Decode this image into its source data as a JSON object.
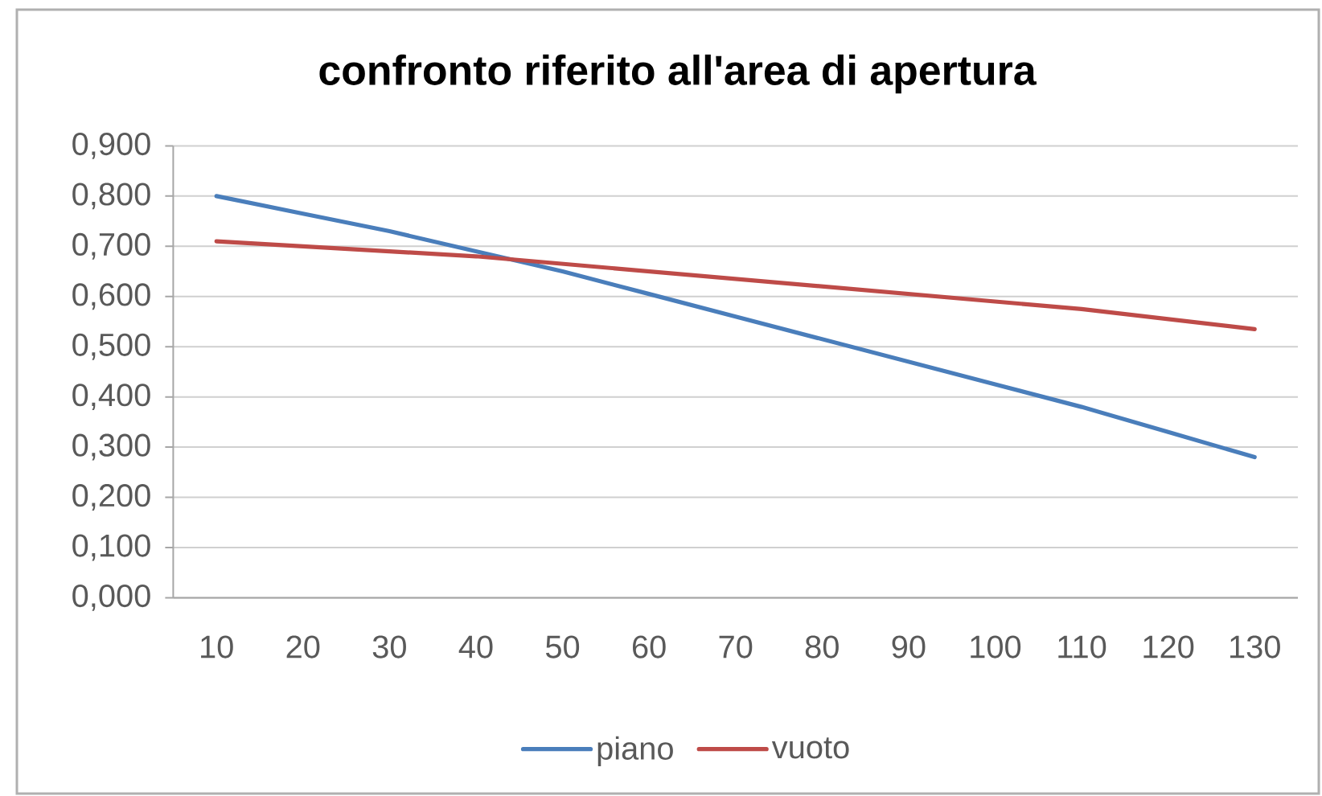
{
  "chart_data": {
    "type": "line",
    "title": "confronto riferito all'area di apertura",
    "categories": [
      "10",
      "20",
      "30",
      "40",
      "50",
      "60",
      "70",
      "80",
      "90",
      "100",
      "110",
      "120",
      "130"
    ],
    "series": [
      {
        "name": "piano",
        "color": "#4a7ebb",
        "values": [
          0.8,
          0.765,
          0.73,
          0.69,
          0.65,
          0.605,
          0.56,
          0.515,
          0.47,
          0.425,
          0.38,
          0.33,
          0.28
        ]
      },
      {
        "name": "vuoto",
        "color": "#be4b48",
        "values": [
          0.71,
          0.7,
          0.69,
          0.68,
          0.665,
          0.65,
          0.635,
          0.62,
          0.605,
          0.59,
          0.575,
          0.555,
          0.535
        ]
      }
    ],
    "ylim": [
      0,
      0.9
    ],
    "yticks": [
      {
        "value": 0,
        "label": "0,000"
      },
      {
        "value": 0.1,
        "label": "0,100"
      },
      {
        "value": 0.2,
        "label": "0,200"
      },
      {
        "value": 0.3,
        "label": "0,300"
      },
      {
        "value": 0.4,
        "label": "0,400"
      },
      {
        "value": 0.5,
        "label": "0,500"
      },
      {
        "value": 0.6,
        "label": "0,600"
      },
      {
        "value": 0.7,
        "label": "0,700"
      },
      {
        "value": 0.8,
        "label": "0,800"
      },
      {
        "value": 0.9,
        "label": "0,900"
      }
    ],
    "grid": "y",
    "legend": "bottom",
    "marker": "none",
    "line_style": "solid"
  }
}
